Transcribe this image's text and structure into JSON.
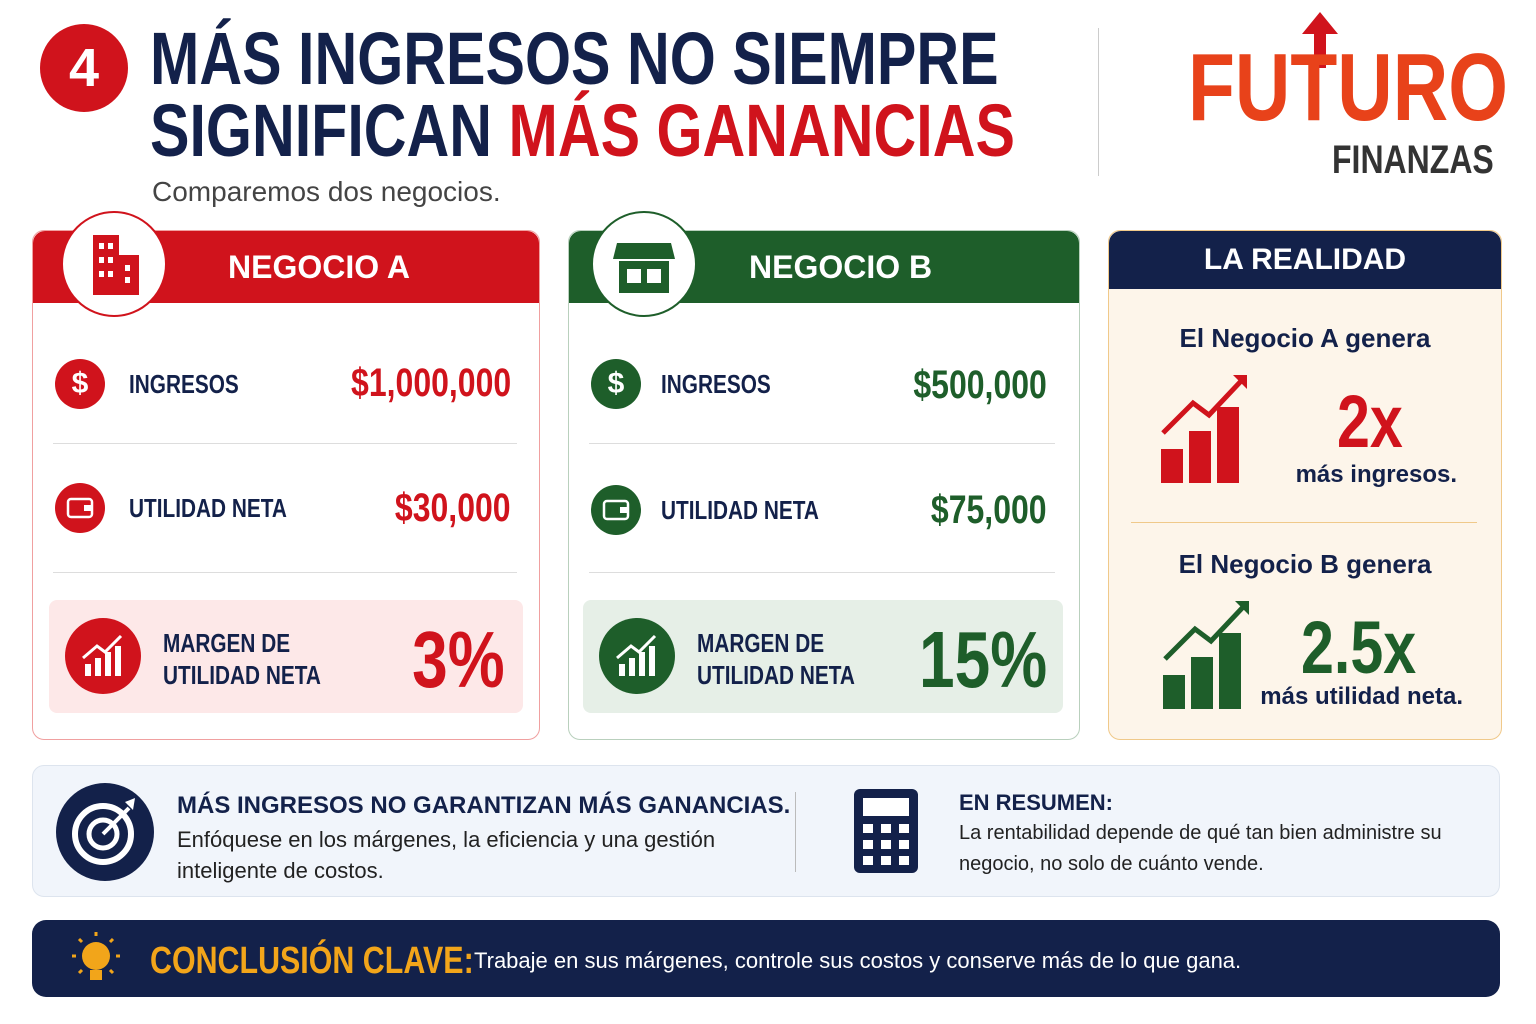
{
  "header": {
    "number": "4",
    "title_line1": "MÁS INGRESOS NO SIEMPRE",
    "title_line2_a": "SIGNIFICAN",
    "title_line2_b": "MÁS GANANCIAS",
    "subtitle": "Comparemos dos negocios."
  },
  "logo": {
    "name": "FUTURO",
    "tagline": "FINANZAS"
  },
  "business_a": {
    "title": "NEGOCIO A",
    "revenue_label": "INGRESOS",
    "revenue": "$1,000,000",
    "profit_label": "UTILIDAD NETA",
    "profit": "$30,000",
    "margin_label_1": "MARGEN DE",
    "margin_label_2": "UTILIDAD NETA",
    "margin": "3%"
  },
  "business_b": {
    "title": "NEGOCIO B",
    "revenue_label": "INGRESOS",
    "revenue": "$500,000",
    "profit_label": "UTILIDAD NETA",
    "profit": "$75,000",
    "margin_label_1": "MARGEN DE",
    "margin_label_2": "UTILIDAD NETA",
    "margin": "15%"
  },
  "reality": {
    "title": "LA REALIDAD",
    "items": [
      {
        "intro": "El Negocio A genera",
        "value": "2x",
        "caption": "más ingresos."
      },
      {
        "intro": "El Negocio B genera",
        "value": "2.5x",
        "caption": "más utilidad neta."
      }
    ]
  },
  "summary": {
    "left_heading": "MÁS INGRESOS NO GARANTIZAN MÁS GANANCIAS.",
    "left_body": "Enfóquese en los márgenes, la eficiencia y una gestión inteligente de costos.",
    "right_heading": "EN RESUMEN:",
    "right_body": "La rentabilidad depende de qué tan bien administre su negocio, no solo de cuánto vende."
  },
  "conclusion": {
    "label": "CONCLUSIÓN CLAVE:",
    "text": "Trabaje en sus márgenes, controle sus costos y conserve más de lo que gana."
  }
}
